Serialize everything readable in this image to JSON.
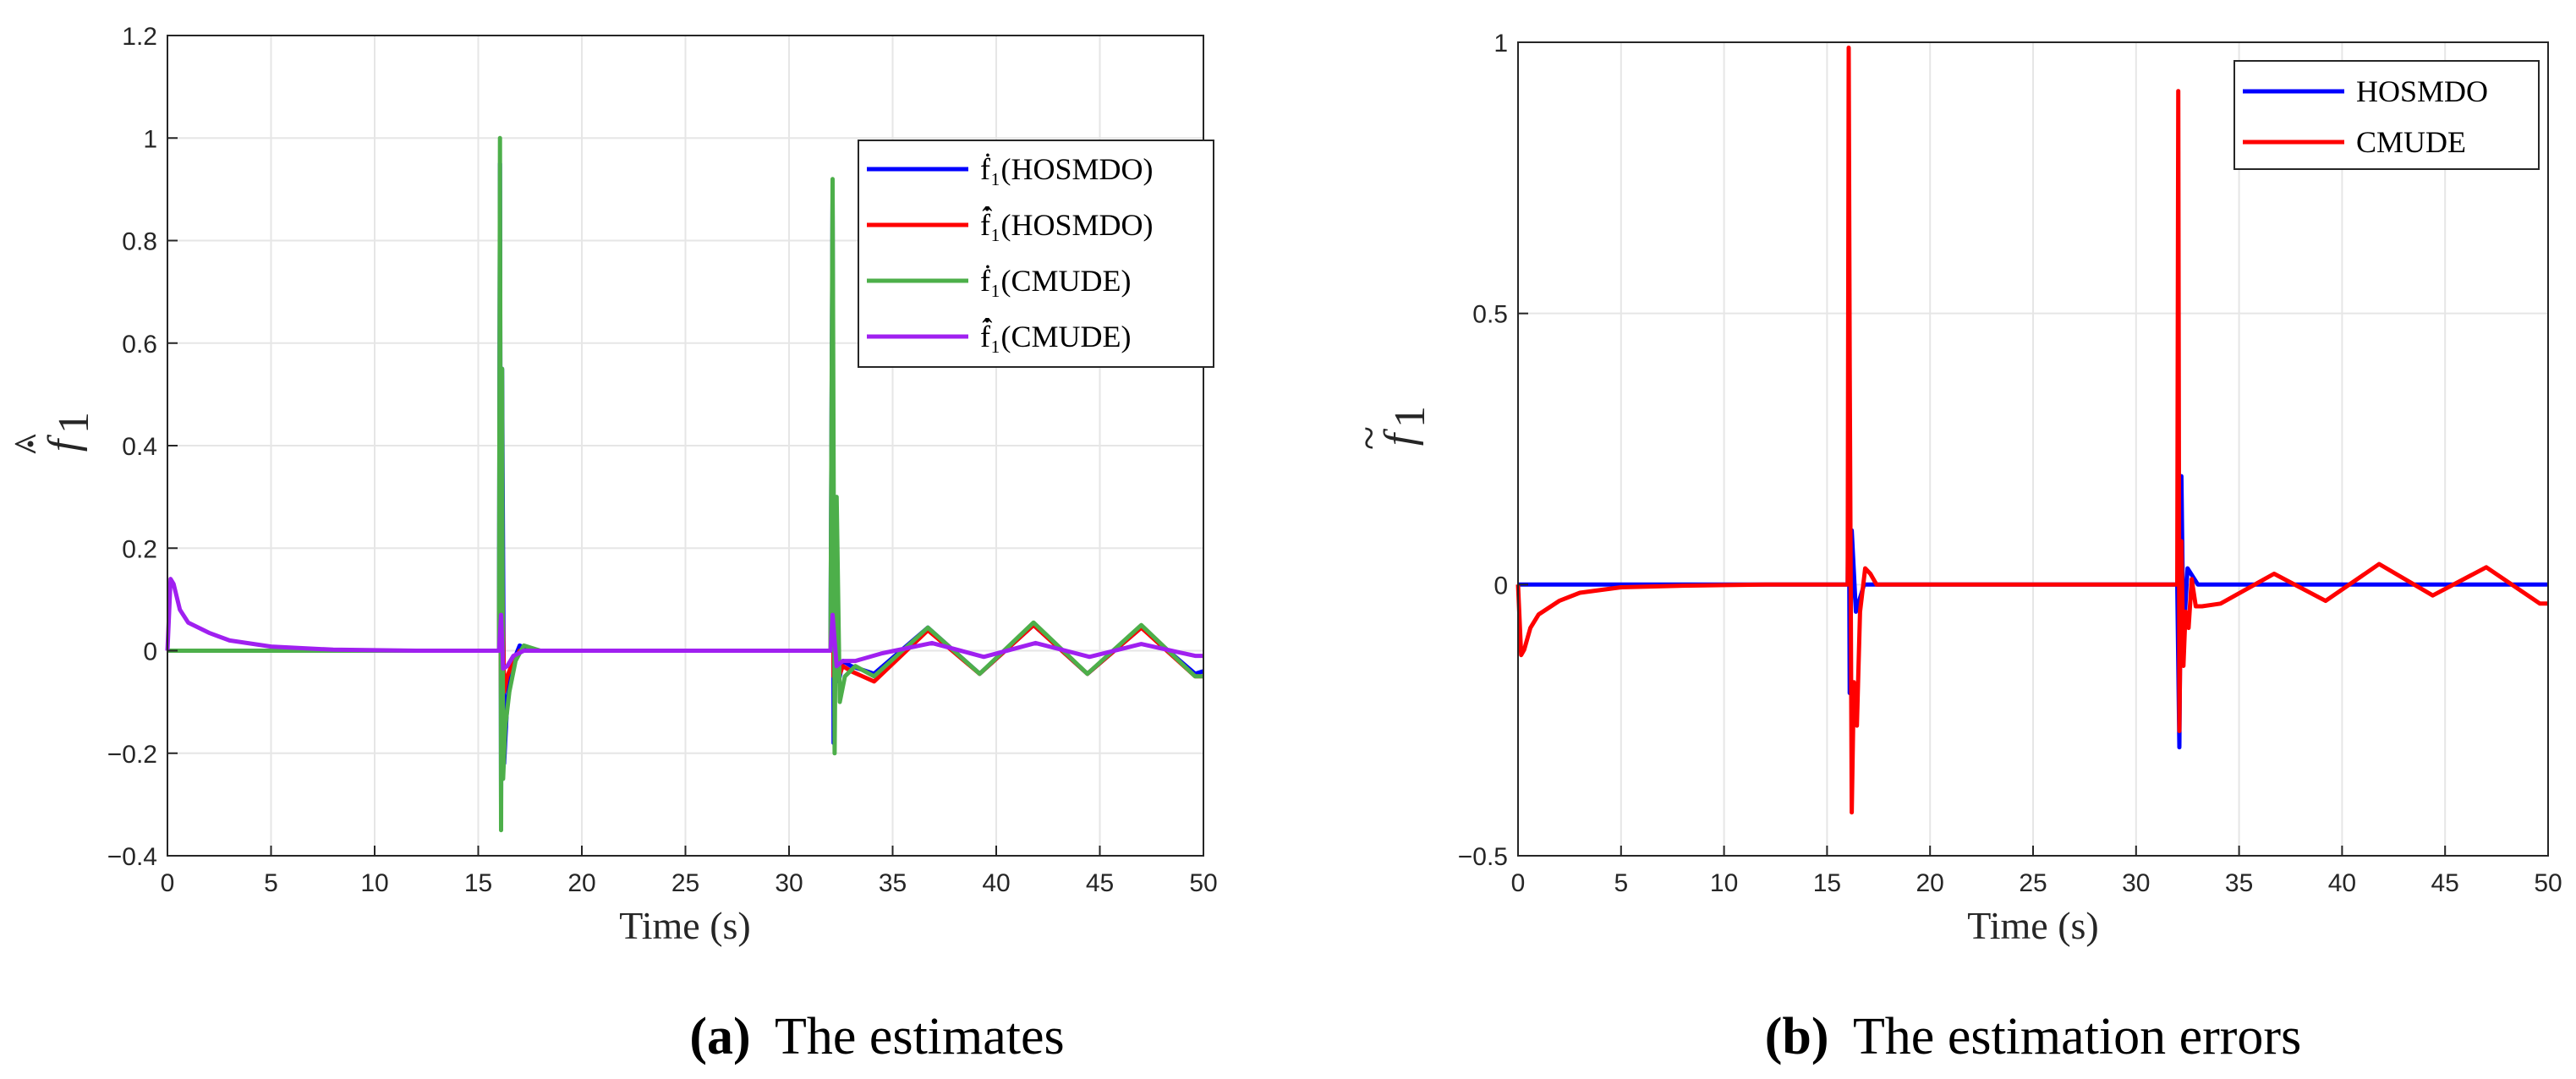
{
  "colors": {
    "blue": "#0000ff",
    "red": "#ff0000",
    "green": "#4daf4a",
    "purple": "#a020f0",
    "axis": "#262626",
    "grid": "#e6e6e6"
  },
  "captions": {
    "a_letter": "(a)",
    "a_text": "The estimates",
    "b_letter": "(b)",
    "b_text": "The estimation errors"
  },
  "chart_data": [
    {
      "type": "line",
      "title": "",
      "xlabel": "Time (s)",
      "ylabel": "f̂₁ (dot)",
      "xlim": [
        0,
        50
      ],
      "ylim": [
        -0.4,
        1.2
      ],
      "xticks": [
        0,
        5,
        10,
        15,
        20,
        25,
        30,
        35,
        40,
        45,
        50
      ],
      "xtick_labels": [
        "0",
        "5",
        "10",
        "15",
        "20",
        "25",
        "30",
        "35",
        "40",
        "45",
        "50"
      ],
      "yticks": [
        -0.4,
        -0.2,
        0,
        0.2,
        0.4,
        0.6,
        0.8,
        1,
        1.2
      ],
      "ytick_labels": [
        "−0.4",
        "−0.2",
        "0",
        "0.2",
        "0.4",
        "0.6",
        "0.8",
        "1",
        "1.2"
      ],
      "grid": true,
      "legend_position": "top-right",
      "series": [
        {
          "name": "ḟ₁(HOSMDO)",
          "color_key": "blue",
          "x": [
            0,
            16,
            16.05,
            16.1,
            16.15,
            16.25,
            16.4,
            16.6,
            17,
            17.5,
            18,
            32,
            32.1,
            32.15,
            32.25,
            32.4,
            32.6,
            33,
            34.1,
            36.7,
            39.2,
            41.8,
            44.4,
            47,
            49.6,
            50
          ],
          "values": [
            0,
            0,
            0.95,
            -0.3,
            0.55,
            -0.22,
            -0.1,
            -0.03,
            0.01,
            0.0,
            0.0,
            0,
            0.88,
            -0.18,
            0.2,
            -0.06,
            -0.02,
            -0.03,
            -0.045,
            0.045,
            -0.045,
            0.05,
            -0.045,
            0.045,
            -0.045,
            -0.04
          ]
        },
        {
          "name": "f̂̇₁(HOSMDO)",
          "color_key": "red",
          "x": [
            0,
            16,
            16.05,
            16.1,
            16.15,
            16.25,
            16.4,
            16.6,
            17,
            17.5,
            18,
            32,
            32.1,
            32.15,
            32.25,
            32.4,
            32.6,
            33,
            34.1,
            36.7,
            39.2,
            41.8,
            44.4,
            47,
            49.6,
            50
          ],
          "values": [
            0,
            0,
            0.25,
            -0.1,
            0.15,
            -0.08,
            -0.05,
            -0.03,
            0.0,
            0.0,
            0.0,
            0,
            0.25,
            -0.05,
            0.1,
            -0.05,
            -0.03,
            -0.04,
            -0.06,
            0.04,
            -0.045,
            0.05,
            -0.045,
            0.045,
            -0.05,
            -0.05
          ]
        },
        {
          "name": "ḟ₁(CMUDE)",
          "color_key": "green",
          "x": [
            0,
            16,
            16.05,
            16.1,
            16.15,
            16.2,
            16.3,
            16.5,
            16.8,
            17.2,
            18,
            32,
            32.1,
            32.2,
            32.3,
            32.45,
            32.7,
            33.2,
            34.1,
            36.7,
            39.2,
            41.8,
            44.4,
            47,
            49.6,
            50
          ],
          "values": [
            0,
            0,
            1.0,
            -0.35,
            0.55,
            -0.25,
            -0.15,
            -0.08,
            -0.02,
            0.01,
            0.0,
            0,
            0.92,
            -0.2,
            0.3,
            -0.1,
            -0.05,
            -0.03,
            -0.05,
            0.045,
            -0.045,
            0.055,
            -0.045,
            0.05,
            -0.05,
            -0.05
          ]
        },
        {
          "name": "f̂̇₁(CMUDE)",
          "color_key": "purple",
          "x": [
            0,
            0.15,
            0.3,
            0.6,
            1,
            2,
            3,
            5,
            8,
            12,
            16,
            16.1,
            16.2,
            16.4,
            16.7,
            17.2,
            18,
            32,
            32.1,
            32.3,
            32.6,
            33.2,
            34.5,
            36.9,
            39.4,
            41.9,
            44.5,
            47,
            49.6,
            50
          ],
          "values": [
            0,
            0.14,
            0.13,
            0.08,
            0.055,
            0.035,
            0.02,
            0.008,
            0.002,
            0.0,
            0,
            0.07,
            -0.035,
            -0.03,
            -0.01,
            0.0,
            0.0,
            0,
            0.07,
            -0.03,
            -0.02,
            -0.02,
            -0.005,
            0.015,
            -0.012,
            0.015,
            -0.012,
            0.013,
            -0.01,
            -0.01
          ]
        }
      ]
    },
    {
      "type": "line",
      "title": "",
      "xlabel": "Time (s)",
      "ylabel": "f̃₁",
      "xlim": [
        0,
        50
      ],
      "ylim": [
        -0.5,
        1
      ],
      "xticks": [
        0,
        5,
        10,
        15,
        20,
        25,
        30,
        35,
        40,
        45,
        50
      ],
      "xtick_labels": [
        "0",
        "5",
        "10",
        "15",
        "20",
        "25",
        "30",
        "35",
        "40",
        "45",
        "50"
      ],
      "yticks": [
        -0.5,
        0,
        0.5,
        1
      ],
      "ytick_labels": [
        "−0.5",
        "0",
        "0.5",
        "1"
      ],
      "grid": true,
      "legend_position": "top-right",
      "series": [
        {
          "name": "HOSMDO",
          "color_key": "blue",
          "x": [
            0,
            16,
            16.05,
            16.1,
            16.2,
            16.4,
            16.8,
            17.5,
            32,
            32.1,
            32.2,
            32.3,
            32.5,
            33,
            50
          ],
          "values": [
            0,
            0,
            0.3,
            -0.2,
            0.1,
            -0.05,
            0.0,
            0.0,
            0,
            -0.3,
            0.2,
            -0.1,
            0.03,
            0.0,
            0.0
          ]
        },
        {
          "name": "CMUDE",
          "color_key": "red",
          "x": [
            0,
            0.15,
            0.3,
            0.6,
            1,
            2,
            3,
            5,
            8,
            12,
            16,
            16.05,
            16.1,
            16.2,
            16.3,
            16.45,
            16.6,
            16.85,
            17.1,
            17.4,
            17.8,
            32,
            32.05,
            32.1,
            32.2,
            32.3,
            32.4,
            32.55,
            32.7,
            32.9,
            33.2,
            34.1,
            36.7,
            39.2,
            41.8,
            44.4,
            47,
            49.6,
            50
          ],
          "values": [
            0,
            -0.13,
            -0.12,
            -0.08,
            -0.055,
            -0.03,
            -0.015,
            -0.005,
            -0.002,
            0.0,
            0,
            0.99,
            0.4,
            -0.42,
            -0.18,
            -0.26,
            -0.05,
            0.03,
            0.02,
            0.0,
            0.0,
            0,
            0.91,
            -0.27,
            0.08,
            -0.15,
            -0.05,
            -0.08,
            0.01,
            -0.04,
            -0.04,
            -0.035,
            0.02,
            -0.03,
            0.038,
            -0.02,
            0.032,
            -0.035,
            -0.035
          ]
        }
      ]
    }
  ]
}
